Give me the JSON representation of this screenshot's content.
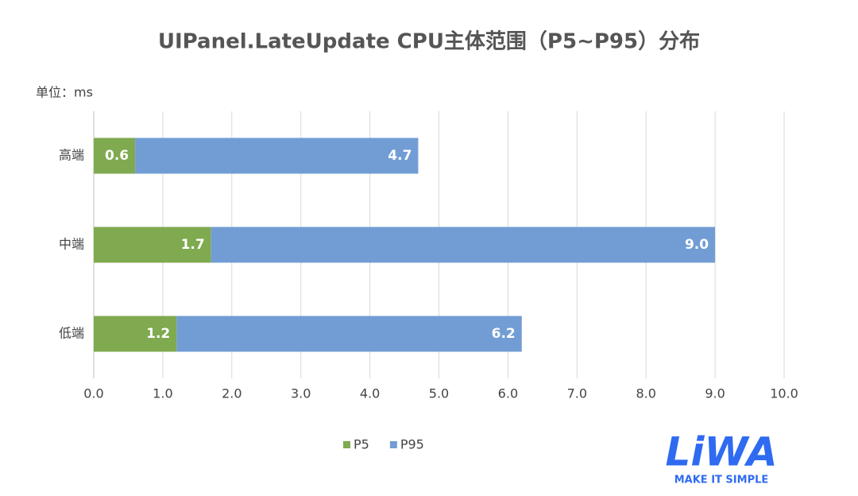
{
  "chart_data": {
    "type": "range_bar",
    "title": "UIPanel.LateUpdate CPU主体范围（P5~P95）分布",
    "unit_label": "单位：ms",
    "orientation": "horizontal",
    "categories": [
      "高端",
      "中端",
      "低端"
    ],
    "series": [
      {
        "name": "P5",
        "color": "#7faa4f",
        "values": [
          0.6,
          1.7,
          1.2
        ]
      },
      {
        "name": "P95",
        "color": "#729dd4",
        "values": [
          4.7,
          9.0,
          6.2
        ],
        "value_labels": [
          "4.7",
          "9.0",
          "6.2"
        ]
      }
    ],
    "xlim": [
      0,
      10
    ],
    "xticks": [
      {
        "value": 0,
        "label": "0.0"
      },
      {
        "value": 1,
        "label": "1.0"
      },
      {
        "value": 2,
        "label": "2.0"
      },
      {
        "value": 3,
        "label": "3.0"
      },
      {
        "value": 4,
        "label": "4.0"
      },
      {
        "value": 5,
        "label": "5.0"
      },
      {
        "value": 6,
        "label": "6.0"
      },
      {
        "value": 7,
        "label": "7.0"
      },
      {
        "value": 8,
        "label": "8.0"
      },
      {
        "value": 9,
        "label": "9.0"
      },
      {
        "value": 10,
        "label": "10.0"
      }
    ],
    "grid": true,
    "legend": "bottom"
  },
  "logo": {
    "name": "LiWA",
    "tagline": "MAKE IT SIMPLE"
  }
}
